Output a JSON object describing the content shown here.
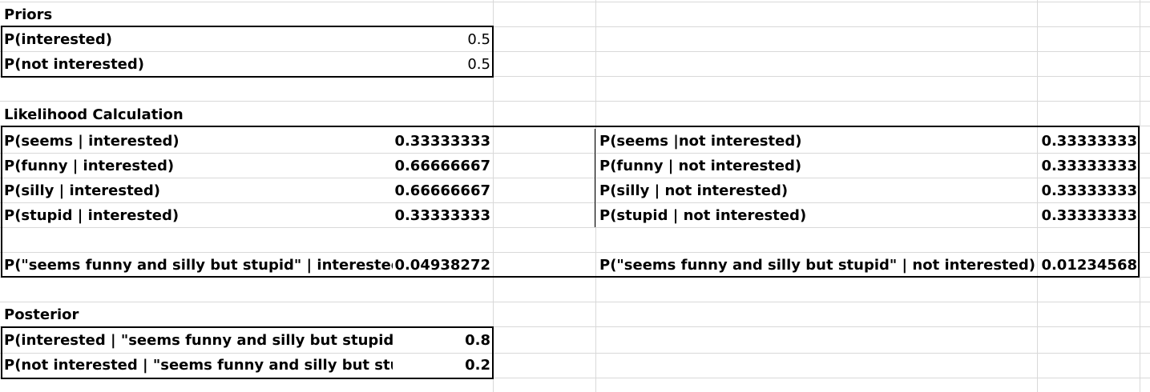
{
  "priors": {
    "heading": "Priors",
    "rows": [
      {
        "label": "P(interested)",
        "value": "0.5"
      },
      {
        "label": "P(not interested)",
        "value": "0.5"
      }
    ]
  },
  "likelihood": {
    "heading": "Likelihood Calculation",
    "interested_rows": [
      {
        "label": "P(seems | interested)",
        "value": "0.33333333"
      },
      {
        "label": "P(funny | interested)",
        "value": "0.66666667"
      },
      {
        "label": "P(silly | interested)",
        "value": "0.66666667"
      },
      {
        "label": "P(stupid | interested)",
        "value": "0.33333333"
      }
    ],
    "not_interested_rows": [
      {
        "label": "P(seems |not interested)",
        "value": "0.33333333"
      },
      {
        "label": "P(funny | not interested)",
        "value": "0.33333333"
      },
      {
        "label": "P(silly | not interested)",
        "value": "0.33333333"
      },
      {
        "label": "P(stupid | not interested)",
        "value": "0.33333333"
      }
    ],
    "total_interested": {
      "label": "P(\"seems funny and silly but stupid\" | interested)",
      "value": "0.04938272"
    },
    "total_not_interested": {
      "label": "P(\"seems funny and silly but stupid\" | not interested)",
      "value": "0.01234568"
    }
  },
  "posterior": {
    "heading": "Posterior",
    "rows": [
      {
        "label": "P(interested | \"seems funny and silly but stupid\")",
        "value": "0.8"
      },
      {
        "label": "P(not interested | \"seems funny and silly but stupid\")",
        "value": "0.2"
      }
    ]
  }
}
